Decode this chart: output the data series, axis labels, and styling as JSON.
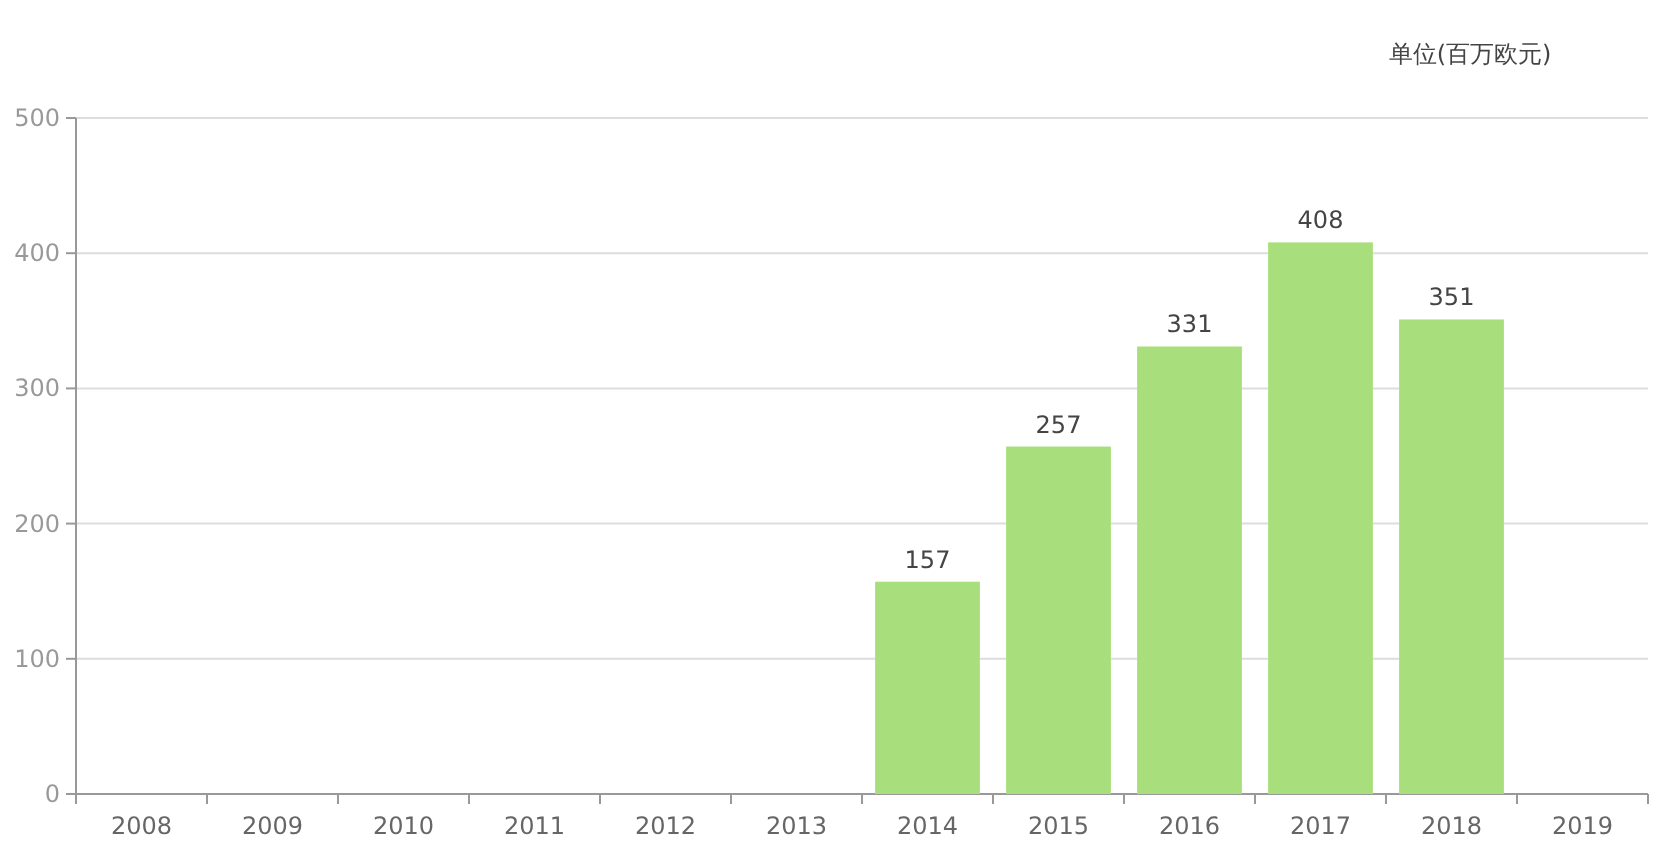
{
  "chart_data": {
    "type": "bar",
    "subtitle": "单位(百万欧元)",
    "categories": [
      "2008",
      "2009",
      "2010",
      "2011",
      "2012",
      "2013",
      "2014",
      "2015",
      "2016",
      "2017",
      "2018",
      "2019"
    ],
    "values": [
      null,
      null,
      null,
      null,
      null,
      null,
      157,
      257,
      331,
      408,
      351,
      null
    ],
    "color": "#a8df7c",
    "ylim": [
      0,
      500
    ],
    "yticks": [
      0,
      100,
      200,
      300,
      400,
      500
    ],
    "grid": "y",
    "data_labels": true
  }
}
